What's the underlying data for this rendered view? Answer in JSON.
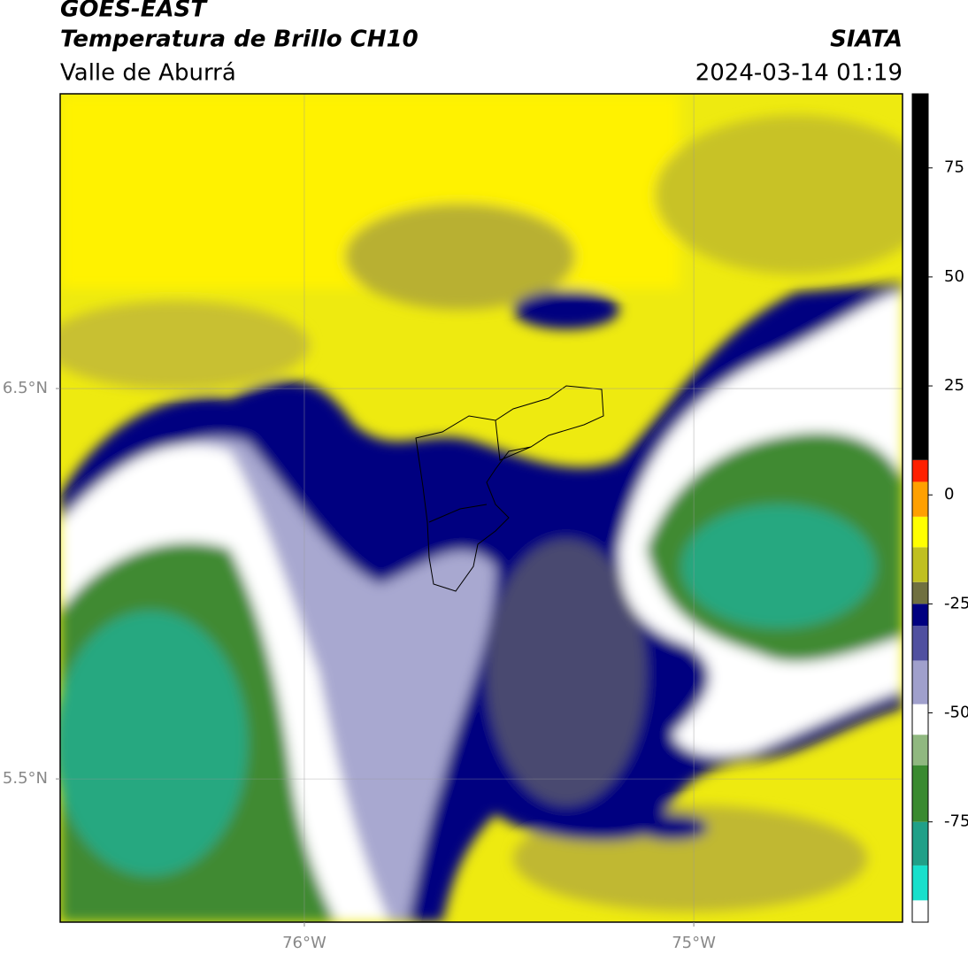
{
  "header": {
    "title": "GOES-EAST",
    "subtitle": "Temperatura de Brillo CH10",
    "region": "Valle de Aburrá",
    "source": "SIATA",
    "datetime": "2024-03-14 01:19"
  },
  "map": {
    "lon_range": [
      -76.627,
      -74.464
    ],
    "lat_range": [
      5.133,
      7.255
    ],
    "lon_ticks": [
      {
        "value": -76,
        "label": "76°W"
      },
      {
        "value": -75,
        "label": "75°W"
      }
    ],
    "lat_ticks": [
      {
        "value": 6.5,
        "label": "6.5°N"
      },
      {
        "value": 5.5,
        "label": "5.5°N"
      }
    ],
    "grid": true
  },
  "colorbar": {
    "range": [
      -98,
      92
    ],
    "ticks": [
      75,
      50,
      25,
      0,
      -25,
      -50,
      -75
    ],
    "segments": [
      {
        "from": -98,
        "to": -93,
        "color": "#ffffff"
      },
      {
        "from": -93,
        "to": -85,
        "color": "#18e0cc"
      },
      {
        "from": -85,
        "to": -75,
        "color": "#20a088"
      },
      {
        "from": -75,
        "to": -62,
        "color": "#3a8a30"
      },
      {
        "from": -62,
        "to": -55,
        "color": "#90b880"
      },
      {
        "from": -55,
        "to": -48,
        "color": "#ffffff"
      },
      {
        "from": -48,
        "to": -38,
        "color": "#a0a0cc"
      },
      {
        "from": -38,
        "to": -30,
        "color": "#5050a0"
      },
      {
        "from": -30,
        "to": -25,
        "color": "#000080"
      },
      {
        "from": -25,
        "to": -20,
        "color": "#707040"
      },
      {
        "from": -20,
        "to": -12,
        "color": "#c0c020"
      },
      {
        "from": -12,
        "to": -5,
        "color": "#ffff00"
      },
      {
        "from": -5,
        "to": 3,
        "color": "#ffa000"
      },
      {
        "from": 3,
        "to": 8,
        "color": "#ff2000"
      },
      {
        "from": 8,
        "to": 92,
        "color": "#000000"
      }
    ]
  }
}
